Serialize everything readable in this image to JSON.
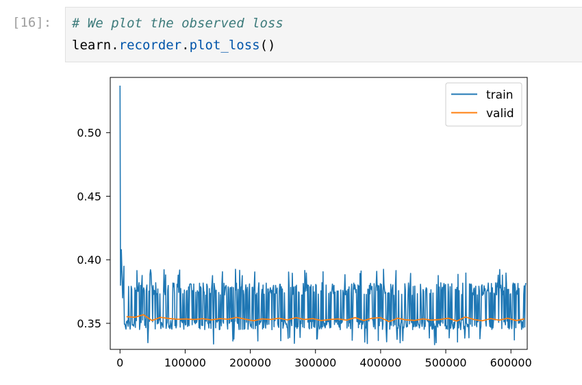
{
  "cell": {
    "prompt": "[16]:",
    "code_comment": "# We plot the observed loss",
    "code_parts": [
      "learn",
      ".",
      "recorder",
      ".",
      "plot_loss",
      "()"
    ]
  },
  "colors": {
    "train": "#1f77b4",
    "valid": "#ff7f0e"
  },
  "chart_data": {
    "type": "line",
    "xlim": [
      -15000,
      625000
    ],
    "ylim": [
      0.3295,
      0.5435
    ],
    "x_ticks": [
      0,
      100000,
      200000,
      300000,
      400000,
      500000,
      600000
    ],
    "y_ticks": [
      0.35,
      0.4,
      0.45,
      0.5
    ],
    "x_tick_labels": [
      "0",
      "100000",
      "200000",
      "300000",
      "400000",
      "500000",
      "600000"
    ],
    "y_tick_labels": [
      "0.35",
      "0.40",
      "0.45",
      "0.50"
    ],
    "grid": false,
    "legend_position": "top-right",
    "legend": [
      "train",
      "valid"
    ],
    "series": [
      {
        "name": "train",
        "color": "#1f77b4",
        "description_points": [
          [
            0,
            0.537
          ],
          [
            800,
            0.38
          ],
          [
            2000,
            0.408
          ],
          [
            4000,
            0.37
          ],
          [
            6000,
            0.395
          ]
        ],
        "band": {
          "x_start": 6000,
          "x_end": 623000,
          "center": 0.362,
          "upper": 0.382,
          "lower": 0.345,
          "spike_max": 0.393,
          "spike_min": 0.333
        }
      },
      {
        "name": "valid",
        "color": "#ff7f0e",
        "x": [
          10000,
          23000,
          36000,
          49000,
          62000,
          75000,
          88000,
          101000,
          114000,
          127000,
          140000,
          153000,
          166000,
          179000,
          192000,
          205000,
          218000,
          231000,
          244000,
          257000,
          270000,
          283000,
          296000,
          309000,
          322000,
          335000,
          348000,
          361000,
          374000,
          387000,
          400000,
          413000,
          426000,
          439000,
          452000,
          465000,
          478000,
          491000,
          504000,
          517000,
          530000,
          543000,
          556000,
          569000,
          582000,
          595000,
          608000,
          621000
        ],
        "values": [
          0.3552,
          0.3548,
          0.3568,
          0.3522,
          0.3547,
          0.3538,
          0.3532,
          0.3534,
          0.353,
          0.3536,
          0.3527,
          0.3537,
          0.3532,
          0.3547,
          0.3533,
          0.352,
          0.3535,
          0.353,
          0.354,
          0.3527,
          0.3545,
          0.353,
          0.3537,
          0.3522,
          0.353,
          0.3535,
          0.3525,
          0.3545,
          0.3522,
          0.354,
          0.3545,
          0.3513,
          0.354,
          0.3527,
          0.3523,
          0.3535,
          0.3525,
          0.353,
          0.354,
          0.3518,
          0.355,
          0.353,
          0.352,
          0.3537,
          0.3525,
          0.354,
          0.3522,
          0.3535
        ]
      }
    ]
  }
}
